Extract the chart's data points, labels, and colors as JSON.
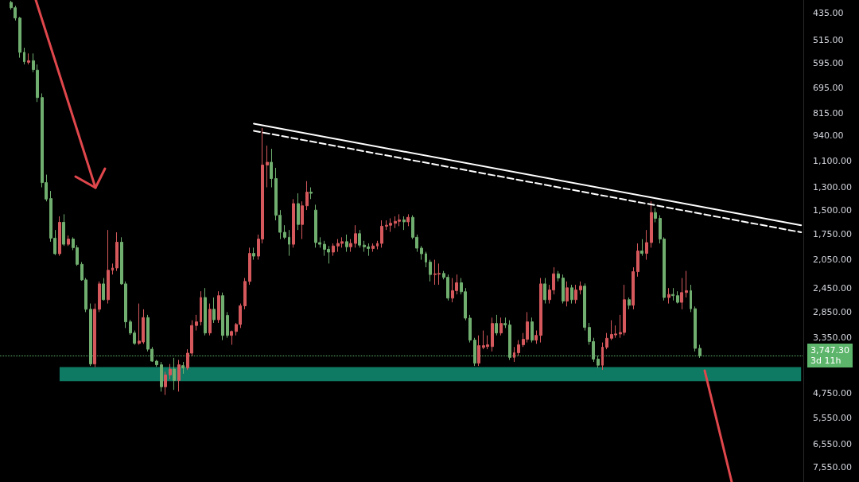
{
  "chart_data": {
    "type": "candlestick",
    "categories": [
      null,
      null,
      null,
      null,
      null,
      null,
      null,
      null,
      null,
      null,
      null,
      null,
      null,
      null,
      null,
      null,
      null,
      null,
      null,
      null,
      null,
      null,
      null,
      null,
      null,
      null,
      null,
      null,
      null,
      null,
      null,
      null,
      null,
      null,
      null,
      null,
      null,
      null,
      null,
      null,
      null,
      null,
      null,
      null,
      null,
      null,
      null,
      null,
      null,
      null,
      null,
      null,
      null,
      null,
      null,
      null,
      null,
      null,
      null,
      null,
      null,
      null,
      null,
      null,
      null,
      null,
      null,
      null,
      null,
      null,
      null,
      null,
      null,
      null,
      null,
      null,
      null,
      null,
      null,
      null,
      null,
      null,
      null,
      null,
      null,
      null,
      null,
      null,
      null,
      null,
      null,
      null,
      null,
      null,
      null,
      null,
      null,
      null,
      null,
      null,
      null,
      null,
      null,
      null,
      null,
      null,
      null,
      null,
      null,
      null,
      null,
      null,
      null,
      null,
      null,
      null,
      null,
      null,
      null,
      null,
      null,
      null,
      null,
      null,
      null,
      null,
      null,
      null,
      null,
      null,
      null,
      null,
      null,
      null,
      null,
      null,
      null,
      null,
      null,
      null,
      null,
      null,
      null,
      null,
      null,
      null,
      null,
      null,
      null,
      null,
      null,
      null,
      null,
      null,
      null,
      null,
      null,
      null,
      null,
      null,
      null,
      null,
      null,
      null,
      null,
      null,
      null,
      null,
      null,
      null,
      null,
      null,
      null,
      null,
      null,
      null,
      null,
      null,
      null,
      null,
      null,
      null
    ],
    "ohlc": [
      null,
      null,
      [
        406,
        425,
        402,
        420
      ],
      [
        420,
        455,
        415,
        448
      ],
      [
        448,
        575,
        445,
        556
      ],
      [
        556,
        600,
        540,
        590
      ],
      [
        592,
        600,
        560,
        586
      ],
      [
        586,
        630,
        560,
        620
      ],
      [
        622,
        760,
        600,
        739
      ],
      [
        739,
        1300,
        720,
        1262
      ],
      [
        1262,
        1420,
        1200,
        1400
      ],
      [
        1395,
        1830,
        1330,
        1790
      ],
      [
        1790,
        1990,
        1700,
        1974
      ],
      [
        1974,
        2000,
        1560,
        1620
      ],
      [
        1620,
        1880,
        1540,
        1860
      ],
      [
        1860,
        1880,
        1760,
        1800
      ],
      [
        1800,
        1930,
        1780,
        1900
      ],
      [
        1900,
        2130,
        1870,
        2110
      ],
      [
        2110,
        2340,
        2080,
        2327
      ],
      [
        2327,
        2850,
        2300,
        2800
      ],
      [
        2800,
        4000,
        2700,
        3950
      ],
      [
        3950,
        4030,
        2700,
        2800
      ],
      [
        2800,
        2850,
        2350,
        2386
      ],
      [
        2386,
        2650,
        2300,
        2636
      ],
      [
        2636,
        2700,
        1700,
        2190
      ],
      [
        2190,
        2250,
        2100,
        2159
      ],
      [
        2159,
        2200,
        1725,
        1836
      ],
      [
        1836,
        2400,
        1780,
        2386
      ],
      [
        2386,
        3150,
        2350,
        3030
      ],
      [
        3030,
        3290,
        2990,
        3250
      ],
      [
        3250,
        3500,
        3200,
        3470
      ],
      [
        3470,
        3500,
        2700,
        3420
      ],
      [
        3440,
        3480,
        2800,
        2950
      ],
      [
        2950,
        3650,
        2900,
        3600
      ],
      [
        3600,
        3900,
        3550,
        3880
      ],
      [
        3880,
        4020,
        3850,
        3970
      ],
      [
        3970,
        4700,
        3900,
        4560
      ],
      [
        4560,
        4800,
        4150,
        4231
      ],
      [
        4231,
        4350,
        3950,
        4080
      ],
      [
        4080,
        4650,
        3800,
        4380
      ],
      [
        4380,
        4700,
        3850,
        3970
      ],
      [
        3990,
        4200,
        3900,
        4050
      ],
      [
        4050,
        4100,
        3600,
        3690
      ],
      [
        3690,
        3750,
        3000,
        3100
      ],
      [
        3100,
        3200,
        2900,
        3030
      ],
      [
        3030,
        3100,
        2500,
        2600
      ],
      [
        2600,
        3300,
        2450,
        3250
      ],
      [
        3250,
        3300,
        2700,
        2800
      ],
      [
        2800,
        3050,
        2600,
        2990
      ],
      [
        2990,
        3050,
        2500,
        2570
      ],
      [
        2570,
        3400,
        2520,
        3300
      ],
      [
        2910,
        3350,
        2850,
        3300
      ],
      [
        3300,
        3500,
        3200,
        3220
      ],
      [
        3220,
        3300,
        3050,
        3080
      ],
      [
        3080,
        3150,
        2700,
        2740
      ],
      [
        2740,
        2800,
        2300,
        2350
      ],
      [
        2350,
        2400,
        1900,
        1970
      ],
      [
        1970,
        2050,
        1900,
        2004
      ],
      [
        2004,
        2050,
        1750,
        1800
      ],
      [
        1800,
        1850,
        895,
        1130
      ],
      [
        1130,
        1300,
        1000,
        1110
      ],
      [
        1110,
        1300,
        1020,
        1230
      ],
      [
        1230,
        1600,
        1150,
        1550
      ],
      [
        1550,
        1800,
        1500,
        1725
      ],
      [
        1725,
        1800,
        1650,
        1780
      ],
      [
        1780,
        2000,
        1700,
        1860
      ],
      [
        1860,
        1900,
        1400,
        1440
      ],
      [
        1440,
        1700,
        1350,
        1642
      ],
      [
        1642,
        1800,
        1420,
        1460
      ],
      [
        1460,
        1500,
        1250,
        1340
      ],
      [
        1340,
        1400,
        1300,
        1350
      ],
      [
        1500,
        1900,
        1450,
        1840
      ],
      [
        1840,
        1900,
        1780,
        1860
      ],
      [
        1860,
        2000,
        1820,
        1920
      ],
      [
        1920,
        2100,
        1880,
        1954
      ],
      [
        1954,
        2000,
        1850,
        1880
      ],
      [
        1880,
        1950,
        1800,
        1850
      ],
      [
        1850,
        1900,
        1780,
        1830
      ],
      [
        1830,
        1950,
        1750,
        1890
      ],
      [
        1890,
        1950,
        1800,
        1850
      ],
      [
        1850,
        1900,
        1650,
        1740
      ],
      [
        1740,
        1900,
        1700,
        1870
      ],
      [
        1870,
        1950,
        1820,
        1890
      ],
      [
        1890,
        2000,
        1850,
        1910
      ],
      [
        1910,
        1950,
        1850,
        1880
      ],
      [
        1880,
        1920,
        1820,
        1850
      ],
      [
        1850,
        1900,
        1600,
        1660
      ],
      [
        1660,
        1700,
        1600,
        1650
      ],
      [
        1650,
        1720,
        1580,
        1630
      ],
      [
        1630,
        1680,
        1560,
        1610
      ],
      [
        1610,
        1660,
        1540,
        1595
      ],
      [
        1595,
        1700,
        1560,
        1615
      ],
      [
        1615,
        1660,
        1540,
        1570
      ],
      [
        1570,
        1800,
        1550,
        1780
      ],
      [
        1780,
        1950,
        1750,
        1906
      ],
      [
        1906,
        2050,
        1880,
        1974
      ],
      [
        1974,
        2150,
        1950,
        2080
      ],
      [
        2080,
        2350,
        2050,
        2250
      ],
      [
        2250,
        2400,
        2050,
        2240
      ],
      [
        2245,
        2400,
        2100,
        2235
      ],
      [
        2235,
        2320,
        2200,
        2290
      ],
      [
        2290,
        2650,
        2250,
        2610
      ],
      [
        2610,
        2680,
        2300,
        2490
      ],
      [
        2490,
        2550,
        2250,
        2370
      ],
      [
        2370,
        2550,
        2300,
        2507
      ],
      [
        2507,
        3000,
        2450,
        2960
      ],
      [
        2960,
        3450,
        2900,
        3400
      ],
      [
        3400,
        4000,
        3350,
        3930
      ],
      [
        3930,
        4000,
        3300,
        3520
      ],
      [
        3560,
        3600,
        3200,
        3520
      ],
      [
        3540,
        3600,
        3300,
        3500
      ],
      [
        3540,
        3650,
        2950,
        3061
      ],
      [
        3061,
        3300,
        2900,
        3250
      ],
      [
        3250,
        3300,
        2950,
        3061
      ],
      [
        3061,
        3150,
        2950,
        3090
      ],
      [
        3090,
        3850,
        3000,
        3790
      ],
      [
        3790,
        3900,
        3550,
        3680
      ],
      [
        3680,
        3750,
        3400,
        3500
      ],
      [
        3500,
        3550,
        3250,
        3382
      ],
      [
        3382,
        3450,
        2850,
        3030
      ],
      [
        3030,
        3450,
        2950,
        3400
      ],
      [
        3400,
        3480,
        3200,
        3300
      ],
      [
        3300,
        3450,
        2300,
        2386
      ],
      [
        2386,
        2700,
        2300,
        2636
      ],
      [
        2636,
        2700,
        2400,
        2480
      ],
      [
        2480,
        2550,
        2150,
        2240
      ],
      [
        2240,
        2350,
        2200,
        2300
      ],
      [
        2300,
        2700,
        2250,
        2660
      ],
      [
        2660,
        2750,
        2350,
        2446
      ],
      [
        2446,
        2700,
        2400,
        2636
      ],
      [
        2636,
        2700,
        2400,
        2480
      ],
      [
        2480,
        2550,
        2350,
        2420
      ],
      [
        2420,
        3200,
        2380,
        3138
      ],
      [
        3138,
        3500,
        3050,
        3430
      ],
      [
        3430,
        3900,
        3350,
        3830
      ],
      [
        3830,
        4050,
        3750,
        3980
      ],
      [
        3980,
        4100,
        3450,
        3554
      ],
      [
        3554,
        3600,
        3250,
        3360
      ],
      [
        3360,
        3400,
        3000,
        3280
      ],
      [
        3290,
        3350,
        3100,
        3270
      ],
      [
        3270,
        3350,
        2900,
        3240
      ],
      [
        3240,
        3300,
        2400,
        2636
      ],
      [
        2636,
        2800,
        2600,
        2730
      ],
      [
        2730,
        2800,
        2150,
        2210
      ],
      [
        2210,
        2280,
        1850,
        1940
      ],
      [
        1940,
        2000,
        1800,
        1970
      ],
      [
        1970,
        2050,
        1700,
        1840
      ],
      [
        1840,
        1900,
        1420,
        1523
      ],
      [
        1523,
        1620,
        1480,
        1580
      ],
      [
        1580,
        1850,
        1550,
        1800
      ],
      [
        1800,
        2650,
        1780,
        2600
      ],
      [
        2600,
        2700,
        2450,
        2550
      ],
      [
        2550,
        2650,
        2450,
        2570
      ],
      [
        2570,
        2700,
        2500,
        2680
      ],
      [
        2680,
        2800,
        2300,
        2520
      ],
      [
        2520,
        2600,
        2200,
        2490
      ],
      [
        2490,
        2850,
        2400,
        2790
      ],
      [
        2790,
        3650,
        2750,
        3580
      ],
      [
        3580,
        3800,
        3500,
        3747.3
      ],
      null,
      null,
      null,
      null,
      null,
      null,
      null,
      null,
      null,
      null,
      null,
      null,
      null,
      null,
      null,
      null,
      null,
      null,
      null,
      null,
      null,
      null,
      null
    ],
    "colors": [
      null,
      null,
      "#6fae6e",
      "#6fae6e",
      "#6fae6e",
      "#6fae6e",
      "#d5585c",
      "#6fae6e",
      "#6fae6e",
      "#6fae6e",
      "#6fae6e",
      "#6fae6e",
      "#6fae6e",
      "#d5585c",
      "#6fae6e",
      "#d5585c",
      "#6fae6e",
      "#6fae6e",
      "#6fae6e",
      "#6fae6e",
      "#6fae6e",
      "#d5585c",
      "#d5585c",
      "#6fae6e",
      "#d5585c",
      "#d5585c",
      "#d5585c",
      "#6fae6e",
      "#6fae6e",
      "#6fae6e",
      "#6fae6e",
      "#d5585c",
      "#d5585c",
      "#6fae6e",
      "#6fae6e",
      "#6fae6e",
      "#6fae6e",
      "#d5585c",
      "#d5585c",
      "#6fae6e",
      "#d5585c",
      "#6fae6e",
      "#d5585c",
      "#d5585c",
      "#d5585c",
      "#d5585c",
      "#6fae6e",
      "#d5585c",
      "#6fae6e",
      "#d5585c",
      "#6fae6e",
      "#6fae6e",
      "#d5585c",
      "#d5585c",
      "#d5585c",
      "#d5585c",
      "#d5585c",
      "#6fae6e",
      "#d5585c",
      "#d5585c",
      "#d5585c",
      "#6fae6e",
      "#6fae6e",
      "#6fae6e",
      "#6fae6e",
      "#6fae6e",
      "#d5585c",
      "#6fae6e",
      "#d5585c",
      "#d5585c",
      "#6fae6e",
      "#6fae6e",
      "#6fae6e",
      "#6fae6e",
      "#6fae6e",
      "#d5585c",
      "#d5585c",
      "#d5585c",
      "#6fae6e",
      "#d5585c",
      "#d5585c",
      "#6fae6e",
      "#6fae6e",
      "#6fae6e",
      "#d5585c",
      "#d5585c",
      "#d5585c",
      "#d5585c",
      "#d5585c",
      "#d5585c",
      "#d5585c",
      "#6fae6e",
      "#d5585c",
      "#6fae6e",
      "#6fae6e",
      "#6fae6e",
      "#6fae6e",
      "#6fae6e",
      "#d5585c",
      "#d5585c",
      "#6fae6e",
      "#6fae6e",
      "#d5585c",
      "#d5585c",
      "#6fae6e",
      "#6fae6e",
      "#6fae6e",
      "#6fae6e",
      "#d5585c",
      "#d5585c",
      "#d5585c",
      "#d5585c",
      "#6fae6e",
      "#d5585c",
      "#6fae6e",
      "#6fae6e",
      "#d5585c",
      "#d5585c",
      "#d5585c",
      "#d5585c",
      "#6fae6e",
      "#d5585c",
      "#d5585c",
      "#6fae6e",
      "#d5585c",
      "#d5585c",
      "#6fae6e",
      "#6fae6e",
      "#d5585c",
      "#6fae6e",
      "#d5585c",
      "#d5585c",
      "#6fae6e",
      "#6fae6e",
      "#6fae6e",
      "#6fae6e",
      "#d5585c",
      "#d5585c",
      "#d5585c",
      "#d5585c",
      "#d5585c",
      "#d5585c",
      "#6fae6e",
      "#d5585c",
      "#d5585c",
      "#6fae6e",
      "#d5585c",
      "#d5585c",
      "#6fae6e",
      "#6fae6e",
      "#6fae6e",
      "#d5585c",
      "#6fae6e",
      "#6fae6e",
      "#d5585c",
      "#d5585c",
      "#6fae6e",
      "#6fae6e",
      "#6fae6e",
      null,
      null,
      null,
      null,
      null,
      null,
      null,
      null,
      null,
      null,
      null,
      null,
      null,
      null,
      null,
      null,
      null,
      null,
      null,
      null,
      null,
      null,
      null
    ],
    "series": [
      {
        "type": "line",
        "color": "#ffffff",
        "line_style": "solid",
        "values": [
          null,
          null,
          null,
          null,
          null,
          null,
          null,
          null,
          null,
          null,
          null,
          null,
          null,
          null,
          null,
          null,
          null,
          null,
          null,
          null,
          null,
          null,
          null,
          null,
          null,
          null,
          null,
          null,
          null,
          null,
          null,
          null,
          null,
          null,
          null,
          null,
          null,
          null,
          null,
          null,
          null,
          null,
          null,
          null,
          null,
          null,
          null,
          null,
          null,
          null,
          null,
          null,
          null,
          null,
          null,
          null,
          null,
          871,
          null,
          null,
          null,
          null,
          null,
          null,
          null,
          null,
          null,
          null,
          null,
          null,
          null,
          null,
          null,
          null,
          null,
          null,
          null,
          null,
          null,
          null,
          null,
          null,
          null,
          null,
          null,
          null,
          null,
          null,
          null,
          null,
          null,
          null,
          null,
          null,
          null,
          null,
          null,
          null,
          null,
          null,
          null,
          null,
          null,
          null,
          null,
          null,
          null,
          null,
          null,
          null,
          null,
          null,
          null,
          null,
          null,
          null,
          null,
          null,
          null,
          null,
          null,
          null,
          null,
          null,
          null,
          null,
          null,
          null,
          null,
          null,
          null,
          null,
          null,
          null,
          null,
          null,
          null,
          null,
          null,
          null,
          null,
          null,
          null,
          null,
          null,
          null,
          null,
          null,
          null,
          null,
          null,
          null,
          null,
          null,
          null,
          null,
          null,
          null,
          null,
          null,
          null,
          null,
          null,
          null,
          null,
          null,
          null,
          null,
          null,
          null,
          null,
          null,
          null,
          null,
          null,
          null,
          null,
          null,
          null,
          null,
          null,
          1650
        ]
      },
      {
        "type": "line",
        "color": "#ffffff",
        "line_style": "dashed",
        "values": [
          null,
          null,
          null,
          null,
          null,
          null,
          null,
          null,
          null,
          null,
          null,
          null,
          null,
          null,
          null,
          null,
          null,
          null,
          null,
          null,
          null,
          null,
          null,
          null,
          null,
          null,
          null,
          null,
          null,
          null,
          null,
          null,
          null,
          null,
          null,
          null,
          null,
          null,
          null,
          null,
          null,
          null,
          null,
          null,
          null,
          null,
          null,
          null,
          null,
          null,
          null,
          null,
          null,
          null,
          null,
          null,
          null,
          911,
          null,
          null,
          null,
          null,
          null,
          null,
          null,
          null,
          null,
          null,
          null,
          null,
          null,
          null,
          null,
          null,
          null,
          null,
          null,
          null,
          null,
          null,
          null,
          null,
          null,
          null,
          null,
          null,
          null,
          null,
          null,
          null,
          null,
          null,
          null,
          null,
          null,
          null,
          null,
          null,
          null,
          null,
          null,
          null,
          null,
          null,
          null,
          null,
          null,
          null,
          null,
          null,
          null,
          null,
          null,
          null,
          null,
          null,
          null,
          null,
          null,
          null,
          null,
          null,
          null,
          null,
          null,
          null,
          null,
          null,
          null,
          null,
          null,
          null,
          null,
          null,
          null,
          null,
          null,
          null,
          null,
          null,
          null,
          null,
          null,
          null,
          null,
          null,
          null,
          null,
          null,
          null,
          null,
          null,
          null,
          null,
          null,
          null,
          null,
          null,
          null,
          null,
          null,
          null,
          null,
          null,
          null,
          null,
          null,
          null,
          null,
          null,
          null,
          null,
          null,
          null,
          null,
          null,
          null,
          null,
          null,
          null,
          null,
          1725
        ]
      }
    ],
    "bands": [
      {
        "axis": "y",
        "from": 4026,
        "to": 4400,
        "color": "#0e7a63"
      }
    ],
    "ref_lines": [
      {
        "axis": "y",
        "value": 3747.3,
        "label": "3,747.30",
        "color": "#5cb56a",
        "line_style": "dotted"
      }
    ],
    "annotations": [
      "3d 11h"
    ],
    "log": "y",
    "ylim": [
      8300,
      400
    ],
    "yticks": [
      {
        "value": 435,
        "label": "435.00"
      },
      {
        "value": 515,
        "label": "515.00"
      },
      {
        "value": 595,
        "label": "595.00"
      },
      {
        "value": 695,
        "label": "695.00"
      },
      {
        "value": 815,
        "label": "815.00"
      },
      {
        "value": 940,
        "label": "940.00"
      },
      {
        "value": 1100,
        "label": "1,100.00"
      },
      {
        "value": 1300,
        "label": "1,300.00"
      },
      {
        "value": 1500,
        "label": "1,500.00"
      },
      {
        "value": 1750,
        "label": "1,750.00"
      },
      {
        "value": 2050,
        "label": "2,050.00"
      },
      {
        "value": 2450,
        "label": "2,450.00"
      },
      {
        "value": 2850,
        "label": "2,850.00"
      },
      {
        "value": 3350,
        "label": "3,350.00"
      },
      {
        "value": 4750,
        "label": "4,750.00"
      },
      {
        "value": 5550,
        "label": "5,550.00"
      },
      {
        "value": 6550,
        "label": "6,550.00"
      },
      {
        "value": 7550,
        "label": "7,550.00"
      }
    ],
    "grid": false,
    "tick_labels": "y"
  }
}
